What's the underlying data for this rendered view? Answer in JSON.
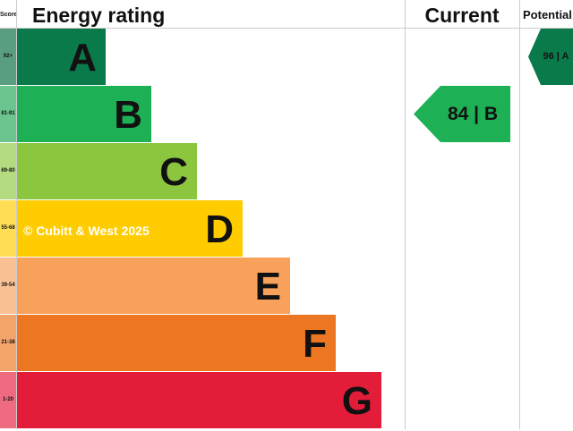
{
  "chart_data": {
    "type": "bar",
    "headers": {
      "score": "Score",
      "rating": "Energy rating",
      "current": "Current",
      "potential": "Potential"
    },
    "bands": [
      {
        "letter": "A",
        "range": "92+",
        "color": "#0b7a4b",
        "light": "#5a9d80"
      },
      {
        "letter": "B",
        "range": "81-91",
        "color": "#1db054",
        "light": "#6cc58e"
      },
      {
        "letter": "C",
        "range": "69-80",
        "color": "#8cc63f",
        "light": "#b4db80"
      },
      {
        "letter": "D",
        "range": "55-68",
        "color": "#ffcc00",
        "light": "#ffdd55"
      },
      {
        "letter": "E",
        "range": "39-54",
        "color": "#f7a15a",
        "light": "#fac095"
      },
      {
        "letter": "F",
        "range": "21-38",
        "color": "#ec7622",
        "light": "#f2a46b"
      },
      {
        "letter": "G",
        "range": "1-20",
        "color": "#e31d39",
        "light": "#ee6a80"
      }
    ],
    "current": {
      "value": 84,
      "band": "B",
      "label": "84 | B",
      "color": "#1db054"
    },
    "potential": {
      "value": 96,
      "band": "A",
      "label": "96 | A",
      "color": "#0b7a4b"
    },
    "watermark": "© Cubitt & West 2025"
  }
}
